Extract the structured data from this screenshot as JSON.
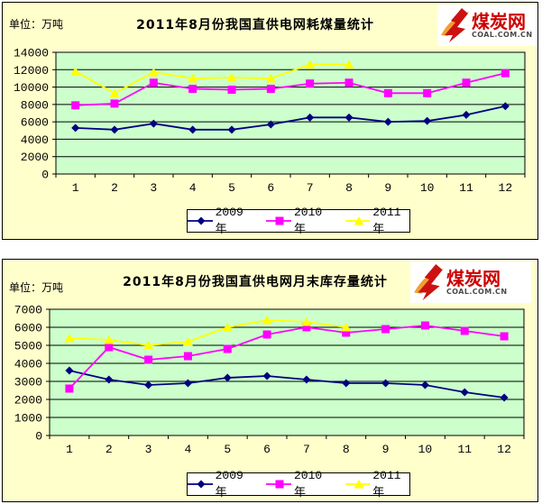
{
  "page": {
    "background": "#FFFFFF",
    "panel_background": "#FFFFCC",
    "plot_background": "#CCFFCC",
    "grid_color": "#000000"
  },
  "logo": {
    "name": "煤炭网",
    "domain": "COAL.COM.CN",
    "red": "#CC1111",
    "orange": "#F0A030"
  },
  "charts": [
    {
      "unit_label": "单位：万吨",
      "title": "2011年8月份我国直供电网耗煤量统计",
      "chart_data": {
        "type": "line",
        "x": [
          "1",
          "2",
          "3",
          "4",
          "5",
          "6",
          "7",
          "8",
          "9",
          "10",
          "11",
          "12"
        ],
        "ylim": [
          0,
          14000
        ],
        "ytick_step": 2000,
        "yticks": [
          0,
          2000,
          4000,
          6000,
          8000,
          10000,
          12000,
          14000
        ],
        "grid": true,
        "legend_position": "bottom",
        "ylabel": "万吨",
        "series": [
          {
            "name": "2009年",
            "color": "#000080",
            "marker": "diamond",
            "values": [
              5300,
              5100,
              5800,
              5100,
              5100,
              5700,
              6500,
              6500,
              6000,
              6100,
              6800,
              7800
            ]
          },
          {
            "name": "2010年",
            "color": "#FF00FF",
            "marker": "square",
            "values": [
              7900,
              8100,
              10500,
              9800,
              9700,
              9800,
              10400,
              10500,
              9300,
              9300,
              10500,
              11600
            ]
          },
          {
            "name": "2011年",
            "color": "#FFFF00",
            "marker": "triangle",
            "values": [
              11800,
              9300,
              11700,
              11000,
              11100,
              11000,
              12600,
              12600
            ]
          }
        ]
      }
    },
    {
      "unit_label": "单位：万吨",
      "title": "2011年8月份我国直供电网月末库存量统计",
      "chart_data": {
        "type": "line",
        "x": [
          "1",
          "2",
          "3",
          "4",
          "5",
          "6",
          "7",
          "8",
          "9",
          "10",
          "11",
          "12"
        ],
        "ylim": [
          0,
          7000
        ],
        "ytick_step": 1000,
        "yticks": [
          0,
          1000,
          2000,
          3000,
          4000,
          5000,
          6000,
          7000
        ],
        "grid": true,
        "legend_position": "bottom",
        "ylabel": "万吨",
        "series": [
          {
            "name": "2009年",
            "color": "#000080",
            "marker": "diamond",
            "values": [
              3600,
              3100,
              2800,
              2900,
              3200,
              3300,
              3100,
              2900,
              2900,
              2800,
              2400,
              2100
            ]
          },
          {
            "name": "2010年",
            "color": "#FF00FF",
            "marker": "square",
            "values": [
              2600,
              4900,
              4200,
              4400,
              4800,
              5600,
              6000,
              5700,
              5900,
              6100,
              5800,
              5500
            ]
          },
          {
            "name": "2011年",
            "color": "#FFFF00",
            "marker": "triangle",
            "values": [
              5400,
              5300,
              5000,
              5200,
              6000,
              6400,
              6300,
              6000
            ]
          }
        ]
      }
    }
  ]
}
